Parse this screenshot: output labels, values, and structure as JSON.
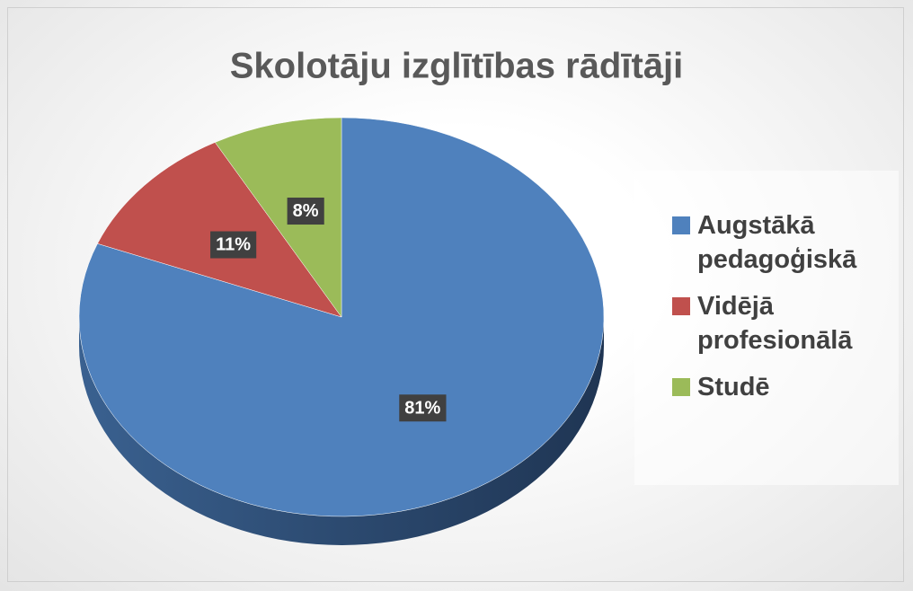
{
  "chart_data": {
    "type": "pie",
    "title": "Skolotāju izglītības rādītāji",
    "categories": [
      "Augstākā pedagoģiskā",
      "Vidējā profesionālā",
      "Studē"
    ],
    "values": [
      81,
      11,
      8
    ],
    "value_labels": [
      "81%",
      "11%",
      "8%"
    ],
    "colors": [
      "#4f81bd",
      "#c0504d",
      "#9bbb59"
    ],
    "legend": "right"
  }
}
